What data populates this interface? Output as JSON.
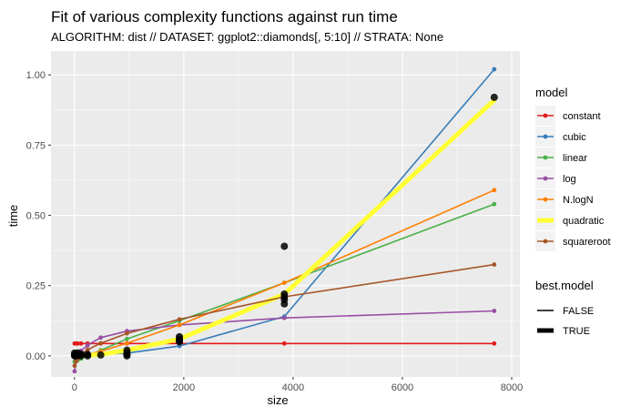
{
  "chart_data": {
    "type": "line",
    "title": "Fit of various complexity functions against run time",
    "subtitle": "ALGORITHM: dist // DATASET: ggplot2::diamonds[, 5:10] // STRATA: None",
    "xlabel": "size",
    "ylabel": "time",
    "xlim": [
      -430,
      8150
    ],
    "ylim": [
      -0.075,
      1.085
    ],
    "xticks": [
      0,
      2000,
      4000,
      6000,
      8000
    ],
    "xtick_labels": [
      "0",
      "2000",
      "4000",
      "6000",
      "8000"
    ],
    "yticks": [
      0.0,
      0.25,
      0.5,
      0.75,
      1.0
    ],
    "ytick_labels": [
      "0.00",
      "0.25",
      "0.50",
      "0.75",
      "1.00"
    ],
    "x": [
      2,
      30,
      60,
      120,
      240,
      480,
      960,
      1920,
      3840,
      7680
    ],
    "series": [
      {
        "name": "constant",
        "color": "#e41a1c",
        "best": false,
        "values": [
          0.044,
          0.044,
          0.044,
          0.044,
          0.044,
          0.044,
          0.044,
          0.044,
          0.044,
          0.044
        ]
      },
      {
        "name": "cubic",
        "color": "#377eb8",
        "best": false,
        "values": [
          0.0,
          0.0,
          0.0,
          0.001,
          0.002,
          0.005,
          0.01,
          0.035,
          0.14,
          1.02
        ]
      },
      {
        "name": "linear",
        "color": "#4daf4a",
        "best": false,
        "values": [
          -0.02,
          -0.018,
          -0.015,
          -0.01,
          0.0,
          0.02,
          0.06,
          0.125,
          0.26,
          0.54
        ]
      },
      {
        "name": "log",
        "color": "#984ea3",
        "best": false,
        "values": [
          -0.055,
          -0.015,
          0.0,
          0.018,
          0.038,
          0.065,
          0.088,
          0.11,
          0.135,
          0.16
        ]
      },
      {
        "name": "N.logN",
        "color": "#ff7f00",
        "best": false,
        "values": [
          0.0,
          0.0,
          0.001,
          0.002,
          0.006,
          0.016,
          0.045,
          0.11,
          0.26,
          0.59
        ]
      },
      {
        "name": "quadratic",
        "color": "#ffff33",
        "best": true,
        "values": [
          0.0,
          0.0,
          0.0,
          0.001,
          0.002,
          0.005,
          0.02,
          0.06,
          0.22,
          0.91
        ]
      },
      {
        "name": "squareroot",
        "color": "#a65628",
        "best": false,
        "values": [
          -0.035,
          -0.02,
          -0.01,
          0.005,
          0.022,
          0.045,
          0.08,
          0.13,
          0.21,
          0.325
        ]
      }
    ],
    "observed_points": [
      {
        "x": 2,
        "y": 0.0
      },
      {
        "x": 2,
        "y": 0.01
      },
      {
        "x": 2,
        "y": 0.003
      },
      {
        "x": 30,
        "y": 0.0
      },
      {
        "x": 30,
        "y": 0.008
      },
      {
        "x": 60,
        "y": 0.002
      },
      {
        "x": 60,
        "y": 0.01
      },
      {
        "x": 120,
        "y": 0.0
      },
      {
        "x": 120,
        "y": 0.006
      },
      {
        "x": 240,
        "y": 0.0
      },
      {
        "x": 240,
        "y": 0.005
      },
      {
        "x": 480,
        "y": 0.003
      },
      {
        "x": 960,
        "y": 0.0
      },
      {
        "x": 960,
        "y": 0.01
      },
      {
        "x": 960,
        "y": 0.02
      },
      {
        "x": 960,
        "y": 0.005
      },
      {
        "x": 1920,
        "y": 0.05
      },
      {
        "x": 1920,
        "y": 0.06
      },
      {
        "x": 1920,
        "y": 0.068
      },
      {
        "x": 1920,
        "y": 0.055
      },
      {
        "x": 3840,
        "y": 0.185
      },
      {
        "x": 3840,
        "y": 0.2
      },
      {
        "x": 3840,
        "y": 0.21
      },
      {
        "x": 3840,
        "y": 0.22
      },
      {
        "x": 3840,
        "y": 0.39
      },
      {
        "x": 7680,
        "y": 0.92
      }
    ],
    "legend": {
      "model_title": "model",
      "best_title": "best.model",
      "best_labels": [
        "FALSE",
        "TRUE"
      ]
    }
  }
}
